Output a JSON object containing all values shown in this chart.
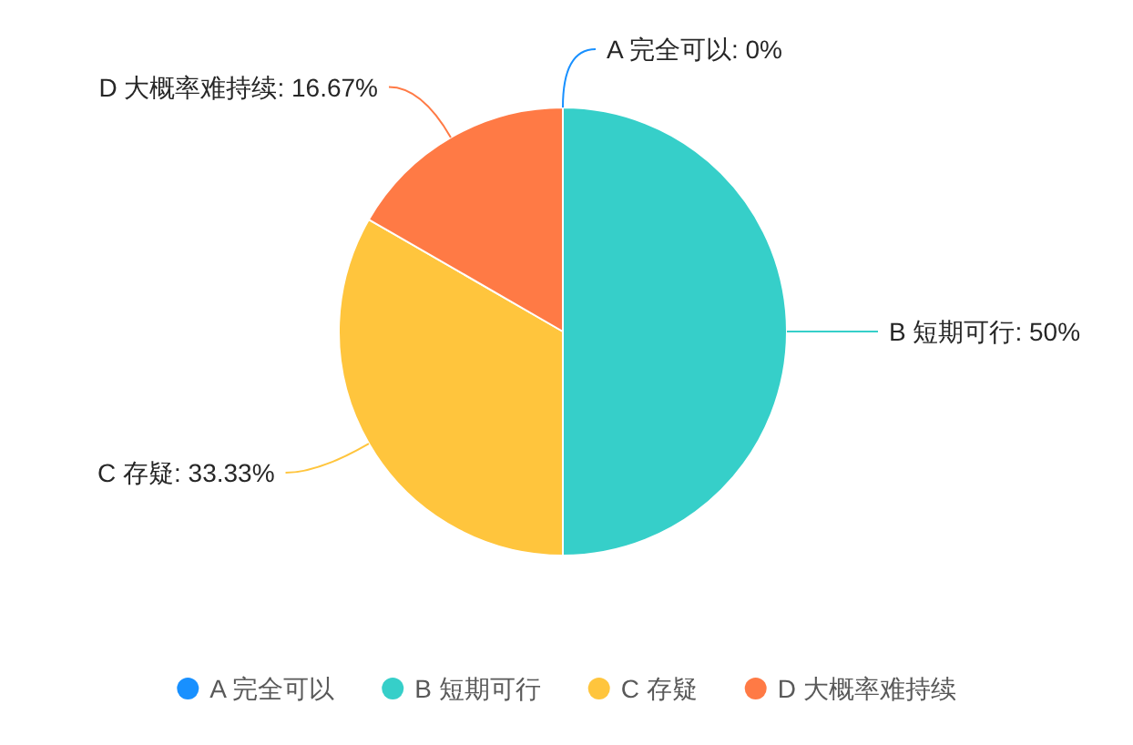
{
  "chart_data": {
    "type": "pie",
    "categories": [
      "A 完全可以",
      "B 短期可行",
      "C 存疑",
      "D 大概率难持续"
    ],
    "values": [
      0,
      50,
      33.33,
      16.67
    ],
    "colors": [
      "#1890ff",
      "#36cfc9",
      "#ffc53d",
      "#ff7a45"
    ],
    "value_labels": [
      "A 完全可以: 0%",
      "B 短期可行: 50%",
      "C 存疑: 33.33%",
      "D 大概率难持续: 16.67%"
    ],
    "legend": "bottom"
  }
}
